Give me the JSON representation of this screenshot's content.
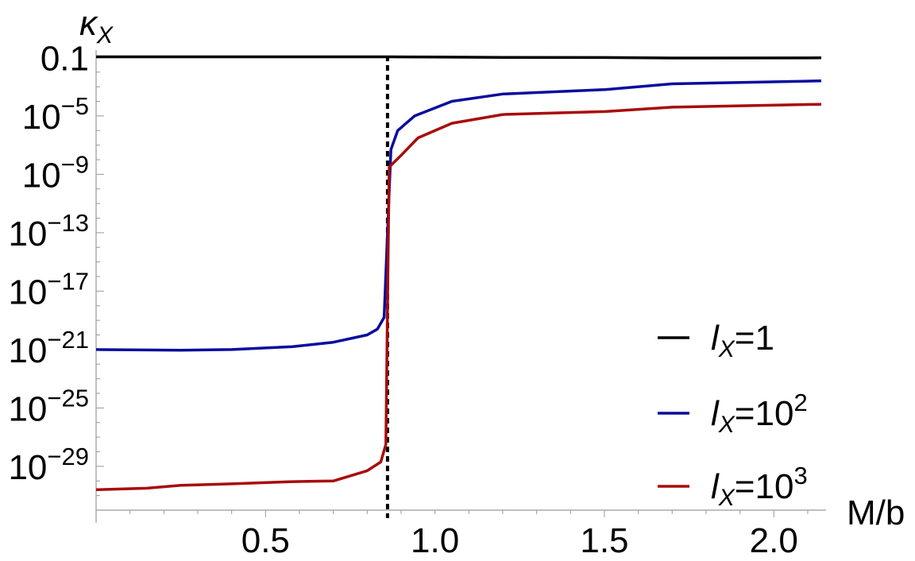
{
  "chart_data": {
    "type": "line",
    "title": "",
    "xlabel": "M/b",
    "ylabel": "κ",
    "ylabel_sub": "X",
    "yscale": "log",
    "xlim": [
      0.0,
      2.14
    ],
    "ylim_exp": [
      -32,
      0.6
    ],
    "grid": false,
    "legend_position": "bottom-right",
    "x_ticks": [
      {
        "value": 0.5,
        "label": "0.5"
      },
      {
        "value": 1.0,
        "label": "1.0"
      },
      {
        "value": 1.5,
        "label": "1.5"
      },
      {
        "value": 2.0,
        "label": "2.0"
      }
    ],
    "y_ticks": [
      {
        "exp": -1,
        "label": "0.1",
        "kind": "plain"
      },
      {
        "exp": -5,
        "base": "10",
        "sup": "−5",
        "kind": "power"
      },
      {
        "exp": -9,
        "base": "10",
        "sup": "−9",
        "kind": "power"
      },
      {
        "exp": -13,
        "base": "10",
        "sup": "−13",
        "kind": "power"
      },
      {
        "exp": -17,
        "base": "10",
        "sup": "−17",
        "kind": "power"
      },
      {
        "exp": -21,
        "base": "10",
        "sup": "−21",
        "kind": "power"
      },
      {
        "exp": -25,
        "base": "10",
        "sup": "−25",
        "kind": "power"
      },
      {
        "exp": -29,
        "base": "10",
        "sup": "−29",
        "kind": "power"
      }
    ],
    "vline": {
      "x": 0.86,
      "style": "dotted",
      "color": "#000000"
    },
    "series": [
      {
        "name": "l_X=1",
        "legend": {
          "var": "l",
          "sub": "X",
          "eq": "=1",
          "sup": ""
        },
        "color": "#000000",
        "points": [
          [
            0.0,
            -0.95
          ],
          [
            0.5,
            -0.95
          ],
          [
            0.86,
            -0.95
          ],
          [
            1.0,
            -0.96
          ],
          [
            1.2,
            -0.99
          ],
          [
            1.5,
            -1.0
          ],
          [
            1.7,
            -1.03
          ],
          [
            2.14,
            -1.02
          ]
        ]
      },
      {
        "name": "l_X=10^2",
        "legend": {
          "var": "l",
          "sub": "X",
          "eq": "=10",
          "sup": "2"
        },
        "color": "#0b0b9e",
        "points": [
          [
            0.0,
            -21.0
          ],
          [
            0.1,
            -21.02
          ],
          [
            0.25,
            -21.05
          ],
          [
            0.4,
            -21.0
          ],
          [
            0.58,
            -20.8
          ],
          [
            0.7,
            -20.5
          ],
          [
            0.8,
            -20.0
          ],
          [
            0.83,
            -19.6
          ],
          [
            0.85,
            -18.8
          ],
          [
            0.86,
            -13.0
          ],
          [
            0.87,
            -7.3
          ],
          [
            0.89,
            -6.0
          ],
          [
            0.94,
            -5.0
          ],
          [
            1.05,
            -4.0
          ],
          [
            1.2,
            -3.5
          ],
          [
            1.5,
            -3.2
          ],
          [
            1.7,
            -2.8
          ],
          [
            2.14,
            -2.6
          ]
        ]
      },
      {
        "name": "l_X=10^3",
        "legend": {
          "var": "l",
          "sub": "X",
          "eq": "=10",
          "sup": "3"
        },
        "color": "#a80b0b",
        "points": [
          [
            0.0,
            -30.6
          ],
          [
            0.15,
            -30.5
          ],
          [
            0.25,
            -30.3
          ],
          [
            0.4,
            -30.2
          ],
          [
            0.57,
            -30.05
          ],
          [
            0.7,
            -30.0
          ],
          [
            0.8,
            -29.3
          ],
          [
            0.84,
            -28.7
          ],
          [
            0.855,
            -27.5
          ],
          [
            0.865,
            -8.5
          ],
          [
            0.9,
            -7.7
          ],
          [
            0.95,
            -6.5
          ],
          [
            1.05,
            -5.5
          ],
          [
            1.2,
            -4.9
          ],
          [
            1.5,
            -4.7
          ],
          [
            1.7,
            -4.4
          ],
          [
            2.14,
            -4.2
          ]
        ]
      }
    ]
  }
}
